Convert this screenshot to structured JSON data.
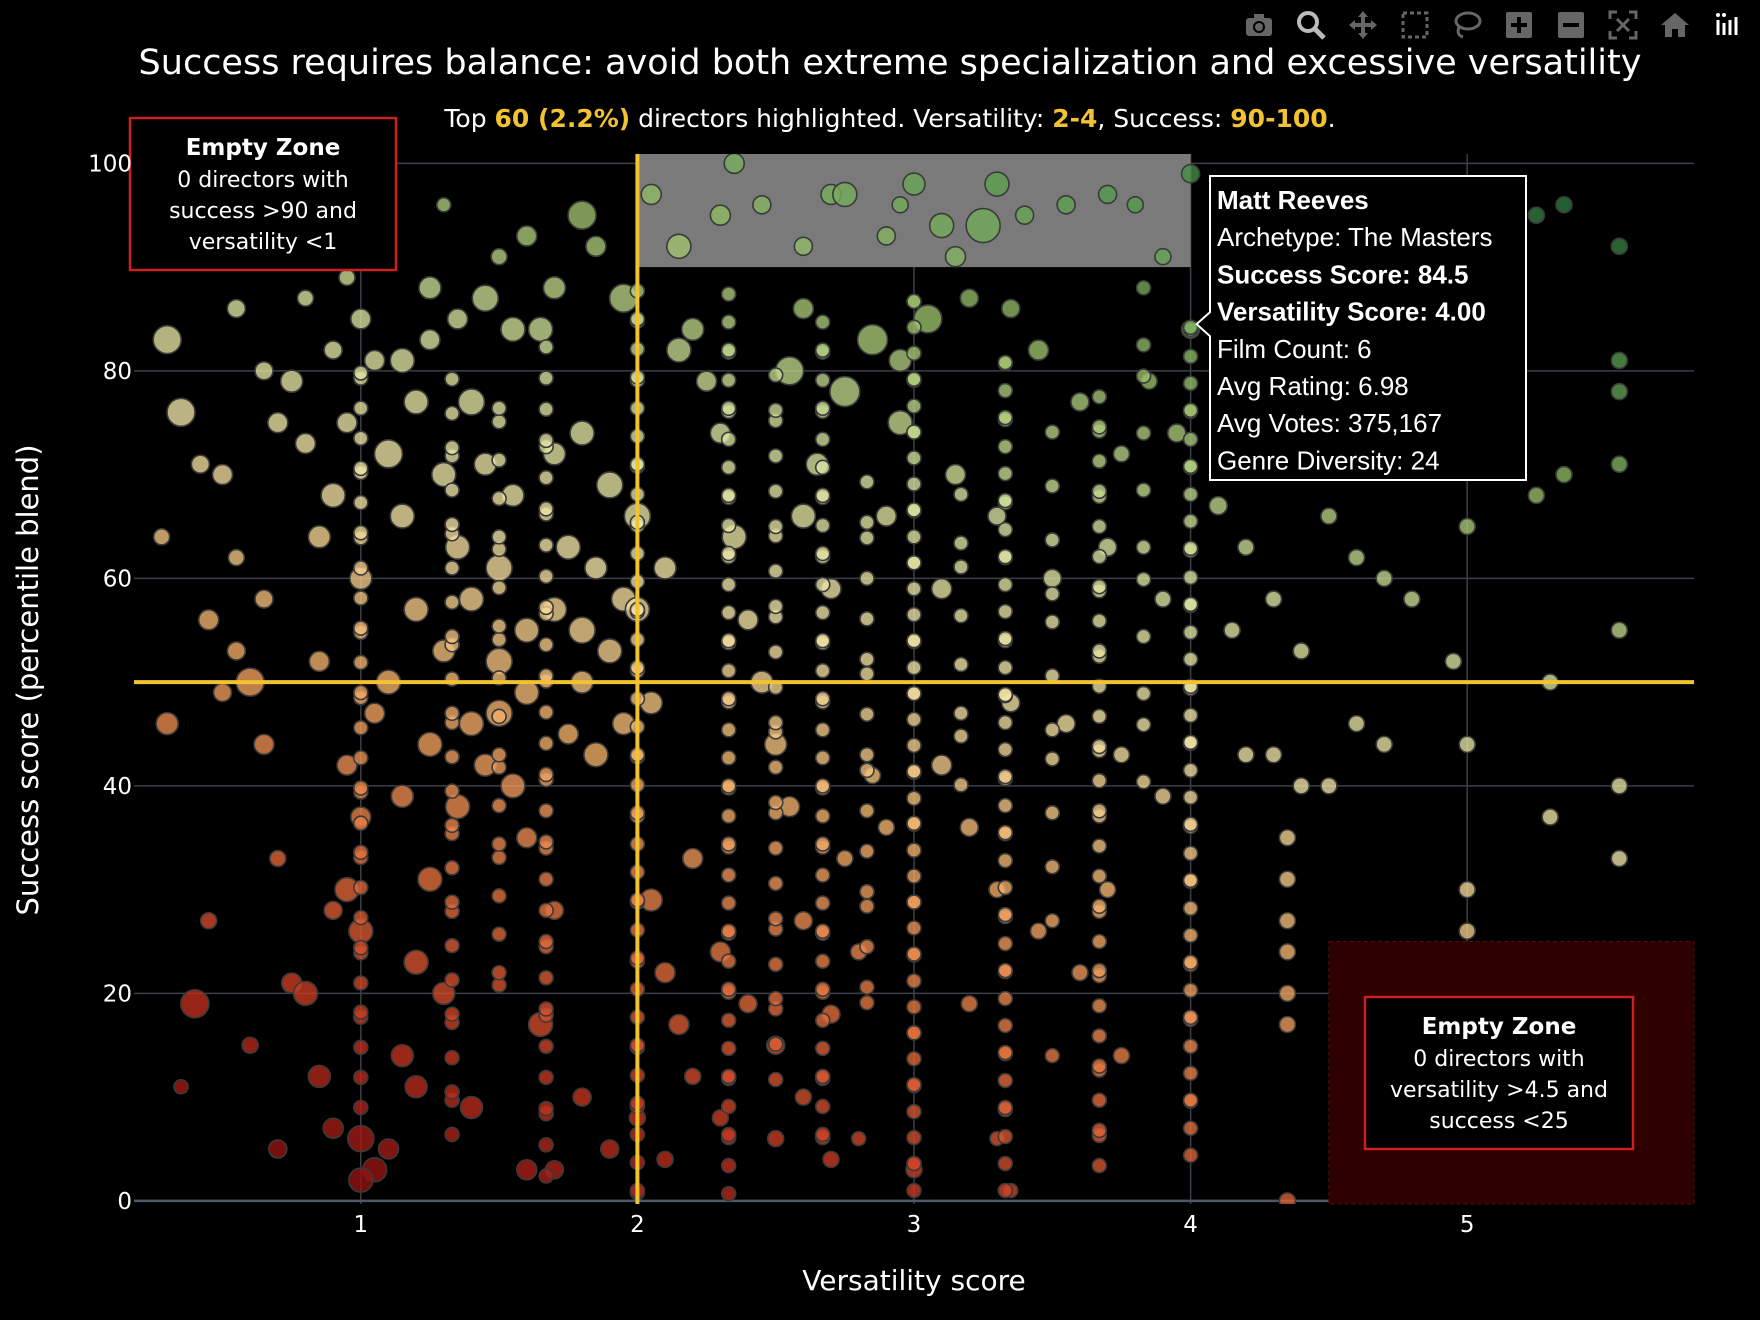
{
  "chart_data": {
    "type": "scatter",
    "title": "Success requires balance: avoid both extreme specialization and excessive versatility",
    "subtitle": {
      "prefix": "Top ",
      "count": "60 (2.2%)",
      "mid": " directors highlighted. Versatility: ",
      "vrange": "2-4",
      "mid2": ", Success: ",
      "srange": "90-100",
      "suffix": "."
    },
    "xlabel": "Versatility score",
    "ylabel": "Success score (percentile blend)",
    "xlim": [
      0.18,
      5.82
    ],
    "ylim": [
      -0.3,
      100.9
    ],
    "xticks": [
      1,
      2,
      3,
      4,
      5
    ],
    "yticks": [
      0,
      20,
      40,
      60,
      80,
      100
    ],
    "grid": true,
    "reference_lines": {
      "x": 2,
      "y": 50,
      "color": "#f2c230"
    },
    "highlight_region": {
      "x": [
        2,
        4
      ],
      "y": [
        90,
        100.9
      ],
      "color": "#7a7a7a"
    },
    "empty_zones": [
      {
        "name": "top-left",
        "x": [
          0.18,
          1.0
        ],
        "y": [
          90,
          100.9
        ],
        "title": "Empty Zone",
        "lines": [
          "0 directors with",
          "success >90 and",
          "versatility <1"
        ]
      },
      {
        "name": "bottom-right",
        "x": [
          4.5,
          5.82
        ],
        "y": [
          -0.3,
          25
        ],
        "title": "Empty Zone",
        "lines": [
          "0 directors with",
          "versatility >4.5 and",
          "success <25"
        ]
      }
    ],
    "colorscale": [
      "#8b0a10",
      "#c8341f",
      "#e8733e",
      "#f6b26b",
      "#f4e5a6",
      "#d9e6a1",
      "#9cc06a",
      "#4f9a4a",
      "#1f6b3a"
    ],
    "points": [
      [
        0.3,
        83,
        14
      ],
      [
        0.35,
        76,
        14
      ],
      [
        0.28,
        64,
        8
      ],
      [
        0.42,
        71,
        9
      ],
      [
        0.5,
        70,
        10
      ],
      [
        0.55,
        62,
        8
      ],
      [
        0.45,
        56,
        10
      ],
      [
        0.3,
        46,
        11
      ],
      [
        0.5,
        49,
        9
      ],
      [
        0.4,
        19,
        14
      ],
      [
        0.45,
        27,
        8
      ],
      [
        0.35,
        11,
        7
      ],
      [
        0.6,
        50,
        14
      ],
      [
        0.65,
        44,
        10
      ],
      [
        0.7,
        33,
        8
      ],
      [
        0.75,
        21,
        10
      ],
      [
        0.8,
        20,
        12
      ],
      [
        0.85,
        12,
        11
      ],
      [
        0.9,
        28,
        9
      ],
      [
        0.95,
        30,
        12
      ],
      [
        1.0,
        26,
        12
      ],
      [
        1.0,
        37,
        10
      ],
      [
        1.05,
        47,
        10
      ],
      [
        1.0,
        6,
        13
      ],
      [
        1.05,
        3,
        12
      ],
      [
        1.1,
        5,
        10
      ],
      [
        1.15,
        14,
        11
      ],
      [
        1.2,
        23,
        12
      ],
      [
        1.25,
        31,
        12
      ],
      [
        1.3,
        20,
        11
      ],
      [
        1.35,
        38,
        12
      ],
      [
        1.4,
        46,
        12
      ],
      [
        1.45,
        42,
        11
      ],
      [
        1.5,
        47,
        13
      ],
      [
        1.55,
        40,
        12
      ],
      [
        1.6,
        35,
        10
      ],
      [
        1.65,
        17,
        12
      ],
      [
        1.7,
        28,
        9
      ],
      [
        1.75,
        45,
        10
      ],
      [
        1.8,
        55,
        13
      ],
      [
        1.85,
        43,
        12
      ],
      [
        0.7,
        75,
        10
      ],
      [
        0.75,
        79,
        11
      ],
      [
        0.8,
        73,
        10
      ],
      [
        0.85,
        64,
        11
      ],
      [
        0.9,
        68,
        12
      ],
      [
        0.95,
        75,
        10
      ],
      [
        1.0,
        60,
        11
      ],
      [
        1.05,
        81,
        10
      ],
      [
        1.1,
        72,
        14
      ],
      [
        1.15,
        66,
        12
      ],
      [
        1.2,
        77,
        12
      ],
      [
        1.25,
        83,
        10
      ],
      [
        1.3,
        70,
        12
      ],
      [
        1.35,
        63,
        12
      ],
      [
        1.4,
        77,
        13
      ],
      [
        1.45,
        71,
        11
      ],
      [
        1.5,
        61,
        13
      ],
      [
        1.55,
        68,
        11
      ],
      [
        1.6,
        55,
        12
      ],
      [
        1.65,
        84,
        12
      ],
      [
        1.7,
        72,
        11
      ],
      [
        1.75,
        63,
        12
      ],
      [
        1.8,
        74,
        12
      ],
      [
        1.85,
        61,
        11
      ],
      [
        1.9,
        69,
        13
      ],
      [
        1.95,
        58,
        12
      ],
      [
        1.6,
        93,
        10
      ],
      [
        1.8,
        95,
        14
      ],
      [
        1.85,
        92,
        10
      ],
      [
        1.7,
        88,
        11
      ],
      [
        1.55,
        84,
        12
      ],
      [
        1.45,
        87,
        13
      ],
      [
        1.35,
        85,
        10
      ],
      [
        1.25,
        88,
        11
      ],
      [
        1.15,
        81,
        12
      ],
      [
        1.0,
        85,
        10
      ],
      [
        0.9,
        82,
        9
      ],
      [
        1.95,
        87,
        14
      ],
      [
        1.5,
        91,
        8
      ],
      [
        1.3,
        96,
        7
      ],
      [
        1.2,
        57,
        12
      ],
      [
        1.3,
        53,
        11
      ],
      [
        1.1,
        50,
        12
      ],
      [
        1.4,
        58,
        12
      ],
      [
        1.5,
        52,
        13
      ],
      [
        1.6,
        49,
        12
      ],
      [
        1.7,
        57,
        12
      ],
      [
        1.8,
        50,
        11
      ],
      [
        1.9,
        53,
        12
      ],
      [
        1.95,
        46,
        11
      ],
      [
        1.25,
        44,
        12
      ],
      [
        1.15,
        39,
        11
      ],
      [
        0.95,
        42,
        10
      ],
      [
        0.85,
        52,
        10
      ],
      [
        0.65,
        58,
        9
      ],
      [
        0.55,
        53,
        9
      ],
      [
        2.0,
        66,
        13
      ],
      [
        2.0,
        57,
        12
      ],
      [
        2.05,
        48,
        11
      ],
      [
        2.1,
        61,
        11
      ],
      [
        2.15,
        82,
        12
      ],
      [
        2.2,
        84,
        11
      ],
      [
        2.25,
        79,
        10
      ],
      [
        2.3,
        74,
        10
      ],
      [
        2.35,
        64,
        12
      ],
      [
        2.4,
        56,
        10
      ],
      [
        2.45,
        50,
        11
      ],
      [
        2.5,
        44,
        11
      ],
      [
        2.55,
        38,
        10
      ],
      [
        2.6,
        66,
        12
      ],
      [
        2.65,
        71,
        11
      ],
      [
        2.7,
        59,
        10
      ],
      [
        2.05,
        29,
        11
      ],
      [
        2.1,
        22,
        10
      ],
      [
        2.15,
        17,
        10
      ],
      [
        2.2,
        33,
        10
      ],
      [
        2.3,
        24,
        10
      ],
      [
        2.4,
        19,
        9
      ],
      [
        2.5,
        15,
        9
      ],
      [
        2.6,
        27,
        9
      ],
      [
        2.7,
        18,
        9
      ],
      [
        2.75,
        33,
        8
      ],
      [
        2.8,
        24,
        8
      ],
      [
        2.85,
        41,
        8
      ],
      [
        2.9,
        36,
        8
      ],
      [
        2.05,
        97,
        10
      ],
      [
        2.15,
        92,
        12
      ],
      [
        2.3,
        95,
        10
      ],
      [
        2.35,
        100,
        10
      ],
      [
        2.45,
        96,
        9
      ],
      [
        2.6,
        92,
        9
      ],
      [
        2.7,
        97,
        10
      ],
      [
        2.75,
        97,
        12
      ],
      [
        2.9,
        93,
        9
      ],
      [
        2.95,
        96,
        8
      ],
      [
        3.0,
        98,
        11
      ],
      [
        3.1,
        94,
        12
      ],
      [
        3.15,
        91,
        10
      ],
      [
        3.25,
        94,
        17
      ],
      [
        3.3,
        98,
        12
      ],
      [
        3.4,
        95,
        9
      ],
      [
        3.55,
        96,
        9
      ],
      [
        3.7,
        97,
        9
      ],
      [
        3.8,
        96,
        8
      ],
      [
        3.9,
        91,
        8
      ],
      [
        4.0,
        99,
        9
      ],
      [
        2.6,
        86,
        10
      ],
      [
        2.85,
        83,
        15
      ],
      [
        2.95,
        81,
        11
      ],
      [
        3.05,
        85,
        14
      ],
      [
        3.2,
        87,
        9
      ],
      [
        3.35,
        86,
        9
      ],
      [
        3.45,
        82,
        10
      ],
      [
        3.6,
        77,
        9
      ],
      [
        3.75,
        72,
        8
      ],
      [
        3.85,
        79,
        8
      ],
      [
        3.95,
        74,
        9
      ],
      [
        4.0,
        84,
        9
      ],
      [
        2.75,
        78,
        15
      ],
      [
        2.55,
        80,
        14
      ],
      [
        2.9,
        66,
        10
      ],
      [
        3.1,
        59,
        10
      ],
      [
        3.3,
        66,
        9
      ],
      [
        3.5,
        60,
        9
      ],
      [
        3.7,
        63,
        9
      ],
      [
        3.9,
        58,
        8
      ],
      [
        2.95,
        75,
        12
      ],
      [
        3.15,
        70,
        10
      ],
      [
        3.35,
        48,
        9
      ],
      [
        3.55,
        46,
        9
      ],
      [
        3.75,
        43,
        8
      ],
      [
        3.9,
        39,
        8
      ],
      [
        3.1,
        42,
        10
      ],
      [
        3.2,
        36,
        9
      ],
      [
        3.3,
        30,
        8
      ],
      [
        3.45,
        26,
        8
      ],
      [
        3.6,
        22,
        8
      ],
      [
        3.75,
        14,
        8
      ],
      [
        3.2,
        19,
        8
      ],
      [
        3.3,
        6,
        7
      ],
      [
        3.5,
        14,
        7
      ],
      [
        3.7,
        30,
        8
      ],
      [
        3.0,
        3,
        8
      ],
      [
        3.35,
        1,
        7
      ],
      [
        4.1,
        67,
        9
      ],
      [
        4.2,
        63,
        8
      ],
      [
        4.3,
        58,
        8
      ],
      [
        4.4,
        53,
        8
      ],
      [
        4.5,
        66,
        8
      ],
      [
        4.6,
        62,
        8
      ],
      [
        4.7,
        60,
        8
      ],
      [
        4.8,
        58,
        8
      ],
      [
        4.15,
        55,
        8
      ],
      [
        4.3,
        43,
        8
      ],
      [
        4.4,
        40,
        8
      ],
      [
        4.6,
        46,
        8
      ],
      [
        4.7,
        44,
        8
      ],
      [
        4.5,
        40,
        8
      ],
      [
        4.95,
        52,
        8
      ],
      [
        5.0,
        65,
        8
      ],
      [
        5.25,
        68,
        8
      ],
      [
        5.35,
        70,
        8
      ],
      [
        5.55,
        78,
        8
      ],
      [
        5.55,
        81,
        8
      ],
      [
        5.55,
        71,
        8
      ],
      [
        5.25,
        95,
        8
      ],
      [
        5.35,
        96,
        8
      ],
      [
        5.55,
        92,
        8
      ],
      [
        5.0,
        44,
        8
      ],
      [
        5.0,
        30,
        8
      ],
      [
        5.0,
        26,
        8
      ],
      [
        5.3,
        37,
        8
      ],
      [
        5.55,
        40,
        8
      ],
      [
        5.55,
        33,
        8
      ],
      [
        5.55,
        55,
        8
      ],
      [
        5.3,
        50,
        8
      ],
      [
        4.35,
        17,
        8
      ],
      [
        4.35,
        20,
        8
      ],
      [
        4.35,
        24,
        8
      ],
      [
        4.35,
        27,
        8
      ],
      [
        4.35,
        31,
        8
      ],
      [
        4.35,
        35,
        8
      ],
      [
        4.35,
        0,
        8
      ],
      [
        4.2,
        43,
        8
      ],
      [
        0.9,
        7,
        10
      ],
      [
        0.7,
        5,
        9
      ],
      [
        0.6,
        15,
        8
      ],
      [
        1.0,
        2,
        12
      ],
      [
        1.2,
        11,
        11
      ],
      [
        1.4,
        9,
        11
      ],
      [
        1.6,
        3,
        10
      ],
      [
        1.8,
        10,
        9
      ],
      [
        1.9,
        5,
        9
      ],
      [
        1.7,
        3,
        9
      ],
      [
        2.0,
        8,
        8
      ],
      [
        2.1,
        4,
        8
      ],
      [
        2.2,
        12,
        8
      ],
      [
        2.3,
        8,
        8
      ],
      [
        2.5,
        6,
        8
      ],
      [
        2.6,
        10,
        8
      ],
      [
        2.7,
        4,
        8
      ],
      [
        2.8,
        6,
        7
      ],
      [
        0.55,
        86,
        9
      ],
      [
        0.65,
        80,
        9
      ],
      [
        0.8,
        87,
        8
      ],
      [
        0.95,
        89,
        8
      ],
      [
        1.05,
        91,
        7
      ]
    ],
    "columns": [
      {
        "x": 1.0,
        "y0": 10,
        "y1": 82,
        "step": 2.2
      },
      {
        "x": 1.33,
        "y0": 6,
        "y1": 80,
        "step": 2.6
      },
      {
        "x": 1.67,
        "y0": 3,
        "y1": 83,
        "step": 2.3
      },
      {
        "x": 2.0,
        "y0": 0,
        "y1": 88,
        "step": 2.0
      },
      {
        "x": 2.33,
        "y0": 1,
        "y1": 88,
        "step": 2.0
      },
      {
        "x": 2.67,
        "y0": 5,
        "y1": 86,
        "step": 2.0
      },
      {
        "x": 3.0,
        "y0": 1,
        "y1": 88,
        "step": 1.8
      },
      {
        "x": 3.33,
        "y0": 2,
        "y1": 82,
        "step": 1.9
      },
      {
        "x": 3.67,
        "y0": 3,
        "y1": 78,
        "step": 2.2
      },
      {
        "x": 4.0,
        "y0": 5,
        "y1": 86,
        "step": 1.9
      },
      {
        "x": 1.5,
        "y0": 20,
        "y1": 78,
        "step": 3.0
      },
      {
        "x": 2.5,
        "y0": 12,
        "y1": 82,
        "step": 2.7
      },
      {
        "x": 2.83,
        "y0": 18,
        "y1": 72,
        "step": 3.2
      },
      {
        "x": 3.17,
        "y0": 40,
        "y1": 68,
        "step": 4.0
      },
      {
        "x": 3.5,
        "y0": 28,
        "y1": 74,
        "step": 4.5
      },
      {
        "x": 3.83,
        "y0": 40,
        "y1": 88,
        "step": 4.8
      }
    ],
    "tooltip": {
      "name": "Matt Reeves",
      "archetype": "Archetype: The Masters",
      "success": "Success Score: 84.5",
      "versatility": "Versatility Score: 4.00",
      "film_count": "Film Count: 6",
      "avg_rating": "Avg Rating: 6.98",
      "avg_votes": "Avg Votes: 375,167",
      "genre_diversity": "Genre Diversity: 24",
      "anchor": [
        4.0,
        84.5
      ]
    }
  },
  "modebar": [
    {
      "name": "camera-icon"
    },
    {
      "name": "zoom-icon"
    },
    {
      "name": "pan-icon"
    },
    {
      "name": "box-select-icon"
    },
    {
      "name": "lasso-icon"
    },
    {
      "name": "zoom-in-icon"
    },
    {
      "name": "zoom-out-icon"
    },
    {
      "name": "autoscale-icon"
    },
    {
      "name": "home-icon"
    },
    {
      "name": "plotly-logo-icon"
    }
  ]
}
